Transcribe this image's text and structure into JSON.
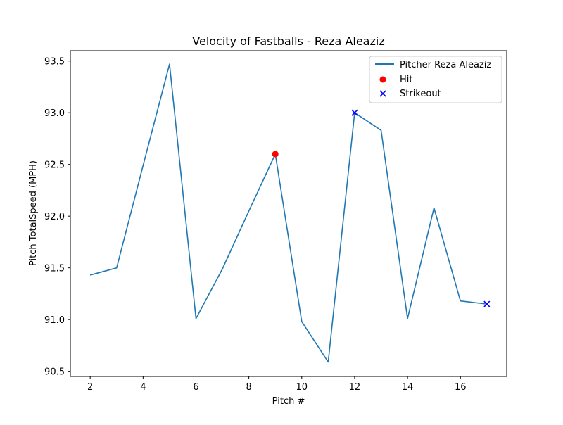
{
  "chart_data": {
    "type": "line",
    "title": "Velocity of Fastballs - Reza Aleaziz",
    "xlabel": "Pitch #",
    "ylabel": "Pitch TotalSpeed (MPH)",
    "xlim": [
      1.25,
      17.75
    ],
    "ylim": [
      90.45,
      93.6
    ],
    "xticks": [
      2,
      4,
      6,
      8,
      10,
      12,
      14,
      16
    ],
    "xtick_labels": [
      "2",
      "4",
      "6",
      "8",
      "10",
      "12",
      "14",
      "16"
    ],
    "yticks": [
      90.5,
      91.0,
      91.5,
      92.0,
      92.5,
      93.0,
      93.5
    ],
    "ytick_labels": [
      "90.5",
      "91.0",
      "91.5",
      "92.0",
      "92.5",
      "93.0",
      "93.5"
    ],
    "grid": false,
    "legend_position": "top-right",
    "series": [
      {
        "name": "Pitcher Reza Aleaziz",
        "kind": "line",
        "color": "#1f77b4",
        "x": [
          2,
          3,
          4,
          5,
          6,
          7,
          8,
          9,
          10,
          11,
          12,
          13,
          14,
          15,
          16,
          17
        ],
        "y": [
          91.43,
          91.5,
          92.49,
          93.47,
          91.01,
          91.49,
          92.05,
          92.6,
          90.98,
          90.59,
          93.0,
          92.83,
          91.01,
          92.08,
          91.18,
          91.15
        ]
      },
      {
        "name": "Hit",
        "kind": "scatter",
        "marker": "circle",
        "color": "#ff0000",
        "x": [
          9
        ],
        "y": [
          92.6
        ]
      },
      {
        "name": "Strikeout",
        "kind": "scatter",
        "marker": "x",
        "color": "#0000ff",
        "x": [
          12,
          17
        ],
        "y": [
          93.0,
          91.15
        ]
      }
    ]
  }
}
